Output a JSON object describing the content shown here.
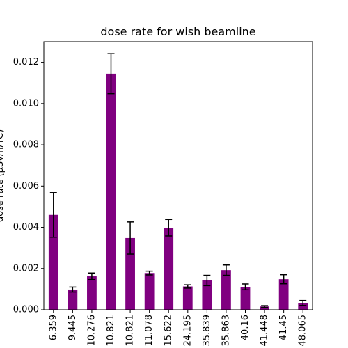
{
  "chart_data": {
    "type": "bar",
    "title": "dose rate for wish beamline",
    "xlabel": "",
    "ylabel": "dose rate (μSv/h/TC)",
    "categories": [
      "6.359",
      "9.445",
      "10.276",
      "10.821",
      "10.821",
      "11.078",
      "15.622",
      "24.195",
      "35.839",
      "35.863",
      "40.16",
      "41.448",
      "41.45",
      "48.065"
    ],
    "values": [
      0.0046,
      0.00098,
      0.00162,
      0.01145,
      0.00348,
      0.00178,
      0.00398,
      0.00113,
      0.00142,
      0.00192,
      0.00111,
      0.00016,
      0.00148,
      0.00033
    ],
    "errors": [
      0.00108,
      0.00012,
      0.00016,
      0.00097,
      0.00078,
      9e-05,
      0.0004,
      8e-05,
      0.00025,
      0.00025,
      0.00014,
      4e-05,
      0.00022,
      0.00012
    ],
    "ylim": [
      0,
      0.013
    ],
    "yticks": [
      "0.000",
      "0.002",
      "0.004",
      "0.006",
      "0.008",
      "0.010",
      "0.012"
    ],
    "ytick_values": [
      0,
      0.002,
      0.004,
      0.006,
      0.008,
      0.01,
      0.012
    ],
    "bar_color": "#800080",
    "error_color": "#000000",
    "grid": false,
    "legend": "none"
  }
}
